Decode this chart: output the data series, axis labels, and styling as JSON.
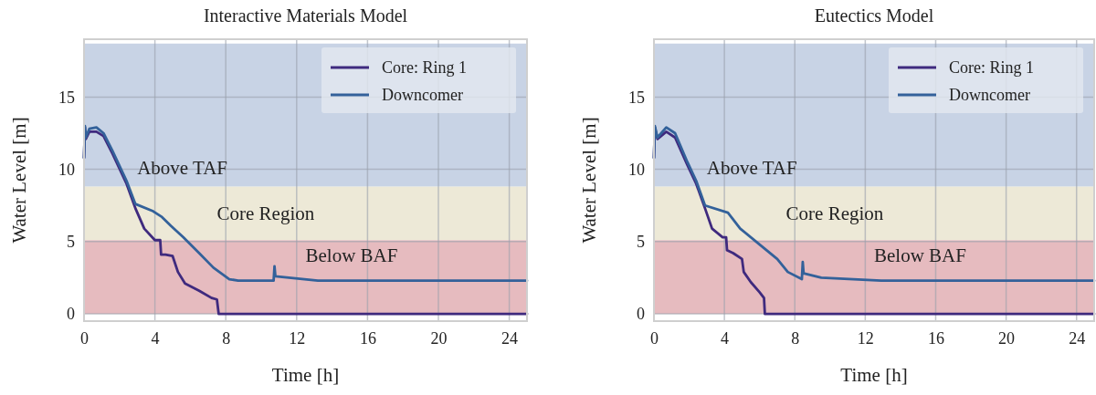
{
  "chart_data": [
    {
      "type": "line",
      "title": "Interactive Materials Model",
      "xlabel": "Time [h]",
      "ylabel": "Water Level [m]",
      "xlim": [
        0,
        25
      ],
      "ylim": [
        -0.5,
        19
      ],
      "xticks": [
        0,
        4,
        8,
        12,
        16,
        20,
        24
      ],
      "yticks": [
        0,
        5,
        10,
        15
      ],
      "grid": true,
      "legend": "top right",
      "bands": [
        {
          "axis": "y",
          "from": 8.8,
          "to": 18.7,
          "label": "Above TAF",
          "color": "#c8d3e5"
        },
        {
          "axis": "y",
          "from": 5.1,
          "to": 8.8,
          "label": "Core Region",
          "color": "#ede9d7"
        },
        {
          "axis": "y",
          "from": 0,
          "to": 5.1,
          "label": "Below BAF",
          "color": "#e6bbbf"
        }
      ],
      "series": [
        {
          "name": "Core: Ring 1",
          "color": "#3f2a7e",
          "x": [
            0.0,
            0.05,
            0.1,
            0.3,
            0.7,
            1.1,
            1.6,
            2.4,
            2.9,
            3.4,
            4.0,
            4.3,
            4.35,
            4.6,
            5.0,
            5.3,
            5.7,
            6.5,
            7.2,
            7.5,
            7.6,
            25
          ],
          "values": [
            10.8,
            12.9,
            12.1,
            12.6,
            12.6,
            12.3,
            11.1,
            9.0,
            7.3,
            5.9,
            5.1,
            5.1,
            4.1,
            4.1,
            4.0,
            2.9,
            2.1,
            1.6,
            1.1,
            1.0,
            0.0,
            0.0
          ]
        },
        {
          "name": "Downcomer",
          "color": "#33619a",
          "x": [
            0.0,
            0.05,
            0.1,
            0.3,
            0.7,
            1.1,
            1.6,
            2.4,
            2.9,
            3.9,
            4.4,
            4.9,
            5.6,
            6.5,
            7.3,
            8.2,
            8.7,
            10.7,
            10.75,
            10.8,
            13.2,
            25
          ],
          "values": [
            10.8,
            13.0,
            12.2,
            12.8,
            12.9,
            12.5,
            11.3,
            9.2,
            7.6,
            7.1,
            6.7,
            6.1,
            5.3,
            4.2,
            3.2,
            2.4,
            2.3,
            2.3,
            3.3,
            2.6,
            2.3,
            2.3
          ]
        }
      ]
    },
    {
      "type": "line",
      "title": "Eutectics Model",
      "xlabel": "Time [h]",
      "ylabel": "Water Level [m]",
      "xlim": [
        0,
        25
      ],
      "ylim": [
        -0.5,
        19
      ],
      "xticks": [
        0,
        4,
        8,
        12,
        16,
        20,
        24
      ],
      "yticks": [
        0,
        5,
        10,
        15
      ],
      "grid": true,
      "legend": "top right",
      "bands": [
        {
          "axis": "y",
          "from": 8.8,
          "to": 18.7,
          "label": "Above TAF",
          "color": "#c8d3e5"
        },
        {
          "axis": "y",
          "from": 5.1,
          "to": 8.8,
          "label": "Core Region",
          "color": "#ede9d7"
        },
        {
          "axis": "y",
          "from": 0,
          "to": 5.1,
          "label": "Below BAF",
          "color": "#e6bbbf"
        }
      ],
      "series": [
        {
          "name": "Core: Ring 1",
          "color": "#3f2a7e",
          "x": [
            0.0,
            0.05,
            0.2,
            0.7,
            1.2,
            1.9,
            2.4,
            2.9,
            3.3,
            3.9,
            4.1,
            4.15,
            4.5,
            5.0,
            5.1,
            5.5,
            6.0,
            6.25,
            6.3,
            25
          ],
          "values": [
            10.8,
            12.9,
            12.1,
            12.6,
            12.2,
            10.3,
            9.0,
            7.3,
            5.9,
            5.3,
            5.3,
            4.4,
            4.2,
            3.8,
            2.9,
            2.2,
            1.5,
            1.1,
            0.0,
            0.0
          ]
        },
        {
          "name": "Downcomer",
          "color": "#33619a",
          "x": [
            0.0,
            0.05,
            0.2,
            0.7,
            1.2,
            1.9,
            2.4,
            2.9,
            4.2,
            4.9,
            6.1,
            7.0,
            7.6,
            8.4,
            8.45,
            8.5,
            9.5,
            12.9,
            25
          ],
          "values": [
            10.8,
            13.0,
            12.2,
            12.9,
            12.5,
            10.5,
            9.2,
            7.5,
            7.0,
            5.9,
            4.7,
            3.8,
            2.9,
            2.4,
            3.6,
            2.8,
            2.5,
            2.3,
            2.3
          ]
        }
      ]
    }
  ]
}
